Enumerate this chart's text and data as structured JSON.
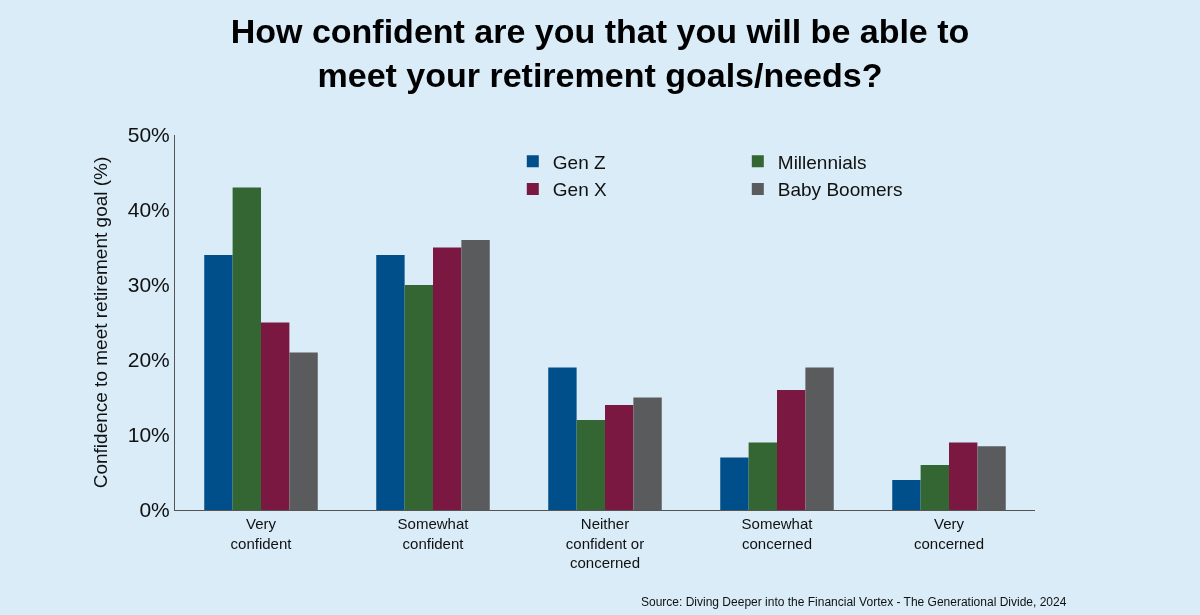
{
  "chart_data": {
    "type": "bar",
    "title": "How confident are you that you will be able to\nmeet your retirement goals/needs?",
    "ylabel": "Confidence to meet retirement goal (%)",
    "categories": [
      "Very confident",
      "Somewhat confident",
      "Neither confident or concerned",
      "Somewhat concerned",
      "Very concerned"
    ],
    "series": [
      {
        "name": "Gen Z",
        "color": "#004f8b",
        "values": [
          34,
          34,
          19,
          7,
          4
        ]
      },
      {
        "name": "Millennials",
        "color": "#336633",
        "values": [
          43,
          30,
          12,
          9,
          6
        ]
      },
      {
        "name": "Gen X",
        "color": "#7b1842",
        "values": [
          25,
          35,
          14,
          16,
          9
        ]
      },
      {
        "name": "Baby Boomers",
        "color": "#5a5b5d",
        "values": [
          21,
          36,
          15,
          19,
          8.5
        ]
      }
    ],
    "ylim": [
      0,
      50
    ],
    "yticks": [
      {
        "value": 0,
        "label": "0%"
      },
      {
        "value": 10,
        "label": "10%"
      },
      {
        "value": 20,
        "label": "20%"
      },
      {
        "value": 30,
        "label": "30%"
      },
      {
        "value": 40,
        "label": "40%"
      },
      {
        "value": 50,
        "label": "50%"
      }
    ],
    "grid": false,
    "legend": "top right",
    "annotations": [
      "Source: Diving Deeper into the Financial Vortex - The Generational Divide, 2024"
    ]
  }
}
